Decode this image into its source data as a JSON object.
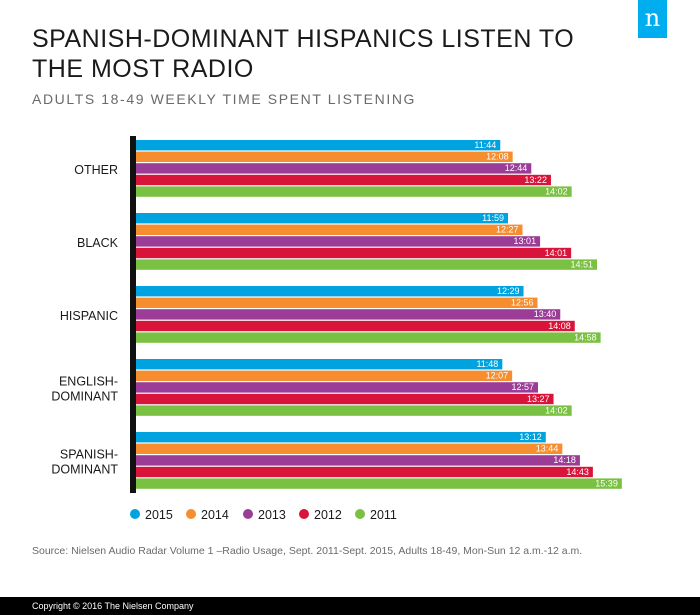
{
  "header": {
    "title": "SPANISH-DOMINANT HISPANICS LISTEN TO THE MOST RADIO",
    "subtitle": "ADULTS 18-49 WEEKLY TIME SPENT LISTENING",
    "logo_text": "n"
  },
  "chart_data": {
    "type": "bar",
    "orientation": "horizontal",
    "title": "SPANISH-DOMINANT HISPANICS LISTEN TO THE MOST RADIO",
    "subtitle": "ADULTS 18-49 WEEKLY TIME SPENT LISTENING",
    "categories": [
      [
        "OTHER"
      ],
      [
        "BLACK"
      ],
      [
        "HISPANIC"
      ],
      [
        "ENGLISH-",
        "DOMINANT"
      ],
      [
        "SPANISH-",
        "DOMINANT"
      ]
    ],
    "series": [
      {
        "name": "2015",
        "color": "#00a3e0",
        "values": [
          "11:44",
          "11:59",
          "12:29",
          "11:48",
          "13:12"
        ]
      },
      {
        "name": "2014",
        "color": "#f68d2e",
        "values": [
          "12:08",
          "12:27",
          "12:56",
          "12:07",
          "13:44"
        ]
      },
      {
        "name": "2013",
        "color": "#9b3d97",
        "values": [
          "12:44",
          "13:01",
          "13:40",
          "12:57",
          "14:18"
        ]
      },
      {
        "name": "2012",
        "color": "#d9143a",
        "values": [
          "13:22",
          "14:01",
          "14:08",
          "13:27",
          "14:43"
        ]
      },
      {
        "name": "2011",
        "color": "#7ac143",
        "values": [
          "14:02",
          "14:51",
          "14:58",
          "14:02",
          "15:39"
        ]
      }
    ],
    "value_format": "hours:minutes",
    "legend_placement": "bottom-left",
    "grid": false
  },
  "source": "Source: Nielsen Audio Radar Volume 1 –Radio Usage, Sept. 2011-Sept. 2015, Adults 18-49, Mon-Sun 12 a.m.-12 a.m.",
  "footer": "Copyright © 2016 The Nielsen Company"
}
